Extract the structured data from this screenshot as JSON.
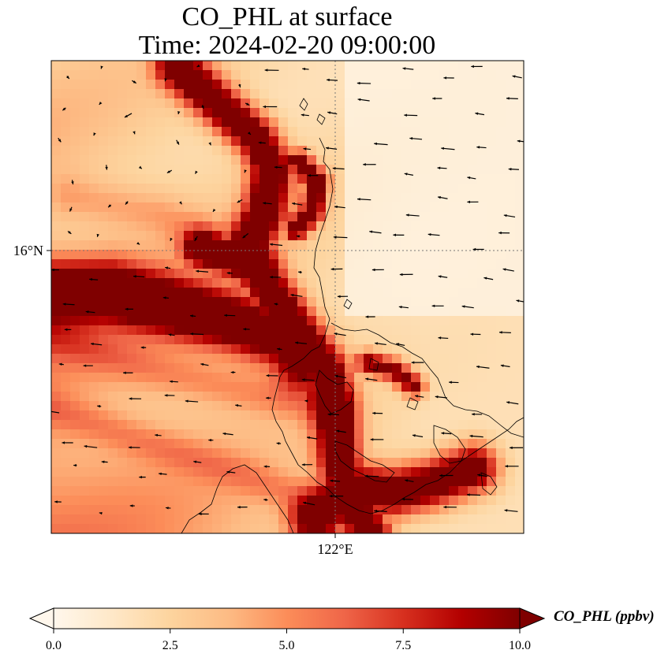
{
  "chart_data": {
    "type": "heatmap",
    "title_line1": "CO_PHL at surface",
    "title_line2": "Time: 2024-02-20 09:00:00",
    "x_ticks": [
      {
        "value": 122,
        "label": "122°E"
      }
    ],
    "y_ticks": [
      {
        "value": 16,
        "label": "16°N"
      }
    ],
    "lon_range": [
      120.5,
      123.0
    ],
    "lat_range": [
      14.5,
      17.1
    ],
    "colorbar": {
      "label": "CO_PHL (ppbv)",
      "vmin": 0.0,
      "vmax": 10.0,
      "extend": "both",
      "colormap": "OrRd",
      "ticks": [
        {
          "value": 0.0,
          "label": "0.0"
        },
        {
          "value": 2.5,
          "label": "2.5"
        },
        {
          "value": 5.0,
          "label": "5.0"
        },
        {
          "value": 7.5,
          "label": "7.5"
        },
        {
          "value": 10.0,
          "label": "10.0"
        }
      ]
    },
    "gridlines": "dotted",
    "overlay": "wind vectors and coastlines"
  },
  "colors": {
    "cmap_stops": [
      "#fff7ec",
      "#fee8c8",
      "#fdd49e",
      "#fdbb84",
      "#fc8d59",
      "#ef6548",
      "#d7301f",
      "#b30000",
      "#7f0000"
    ],
    "coastline": "#000000",
    "arrow": "#000000",
    "gridline": "#777777"
  }
}
